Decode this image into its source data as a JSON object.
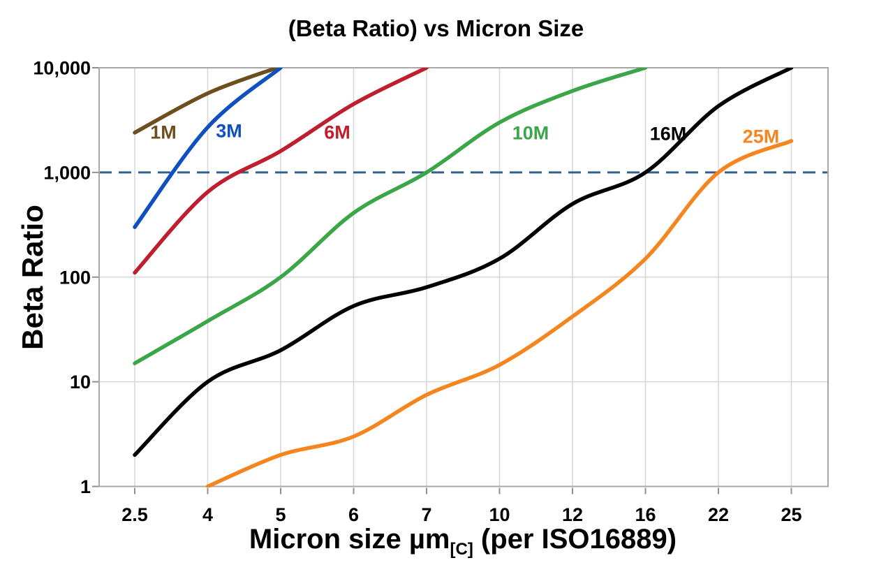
{
  "title": "(Beta Ratio) vs Micron Size",
  "y_axis": {
    "label": "Beta Ratio",
    "tick_labels": [
      "10,000",
      "1,000",
      "100",
      "10",
      "1"
    ],
    "tick_values": [
      10000,
      1000,
      100,
      10,
      1
    ],
    "scale": "log10",
    "range": [
      1,
      10000
    ]
  },
  "x_axis": {
    "label_prefix": "Micron size µm",
    "label_subscript": "[C]",
    "label_suffix": " (per ISO16889)",
    "tick_labels": [
      "2.5",
      "4",
      "5",
      "6",
      "7",
      "10",
      "12",
      "16",
      "22",
      "25"
    ]
  },
  "style": {
    "grid_color": "#D8D8D8",
    "border_color": "#A8A8A8",
    "tick_color": "#8F8F8F",
    "background": "#FFFFFF"
  },
  "chart_data": {
    "type": "line",
    "title": "(Beta Ratio) vs Micron Size",
    "xlabel": "Micron size µm[C] (per ISO16889)",
    "ylabel": "Beta Ratio",
    "x_categories": [
      2.5,
      4,
      5,
      6,
      7,
      10,
      12,
      16,
      22,
      25
    ],
    "x_scale": "categorical-even-spacing",
    "y_scale": "log10",
    "ylim": [
      1,
      10000
    ],
    "grid": true,
    "reference_line": {
      "value": 1000,
      "style": "dashed",
      "color": "#31618F"
    },
    "series": [
      {
        "name": "1M",
        "color": "#6F4E1D",
        "points": [
          [
            2.5,
            2400
          ],
          [
            4,
            5700
          ],
          [
            4.95,
            10000
          ]
        ]
      },
      {
        "name": "3M",
        "color": "#0E4FC1",
        "points": [
          [
            2.5,
            300
          ],
          [
            4,
            2700
          ],
          [
            5,
            10000
          ]
        ]
      },
      {
        "name": "6M",
        "color": "#BE1E2D",
        "points": [
          [
            2.5,
            110
          ],
          [
            4,
            650
          ],
          [
            5,
            1600
          ],
          [
            6,
            4500
          ],
          [
            7,
            10000
          ]
        ]
      },
      {
        "name": "10M",
        "color": "#3BA648",
        "points": [
          [
            2.5,
            15
          ],
          [
            4,
            38
          ],
          [
            5,
            100
          ],
          [
            6,
            410
          ],
          [
            7,
            1000
          ],
          [
            10,
            3000
          ],
          [
            12,
            6000
          ],
          [
            16,
            10000
          ]
        ]
      },
      {
        "name": "16M",
        "color": "#000000",
        "points": [
          [
            2.5,
            2
          ],
          [
            4,
            10
          ],
          [
            5,
            20
          ],
          [
            6,
            53
          ],
          [
            7,
            80
          ],
          [
            10,
            150
          ],
          [
            12,
            500
          ],
          [
            16,
            1000
          ],
          [
            22,
            4300
          ],
          [
            25,
            10000
          ]
        ]
      },
      {
        "name": "25M",
        "color": "#F5861F",
        "points": [
          [
            4,
            1
          ],
          [
            5,
            2
          ],
          [
            6,
            3
          ],
          [
            7,
            7.5
          ],
          [
            10,
            14.5
          ],
          [
            12,
            42
          ],
          [
            16,
            150
          ],
          [
            22,
            1000
          ],
          [
            25,
            2000
          ]
        ]
      }
    ]
  }
}
